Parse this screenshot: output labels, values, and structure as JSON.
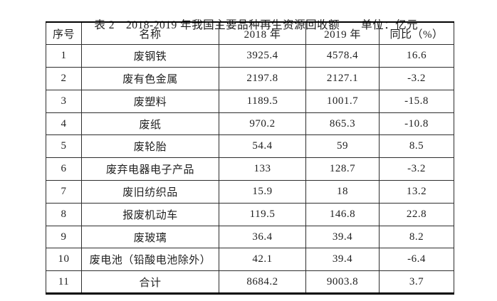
{
  "title": {
    "text": "表 2　2018-2019 年我国主要品种再生资源回收额",
    "unit": "单位：亿元"
  },
  "table": {
    "headers": [
      "序号",
      "名称",
      "2018 年",
      "2019 年",
      "同比（%）"
    ],
    "rows": [
      [
        "1",
        "废钢铁",
        "3925.4",
        "4578.4",
        "16.6"
      ],
      [
        "2",
        "废有色金属",
        "2197.8",
        "2127.1",
        "-3.2"
      ],
      [
        "3",
        "废塑料",
        "1189.5",
        "1001.7",
        "-15.8"
      ],
      [
        "4",
        "废纸",
        "970.2",
        "865.3",
        "-10.8"
      ],
      [
        "5",
        "废轮胎",
        "54.4",
        "59",
        "8.5"
      ],
      [
        "6",
        "废弃电器电子产品",
        "133",
        "128.7",
        "-3.2"
      ],
      [
        "7",
        "废旧纺织品",
        "15.9",
        "18",
        "13.2"
      ],
      [
        "8",
        "报废机动车",
        "119.5",
        "146.8",
        "22.8"
      ],
      [
        "9",
        "废玻璃",
        "36.4",
        "39.4",
        "8.2"
      ],
      [
        "10",
        "废电池（铅酸电池除外）",
        "42.1",
        "39.4",
        "-6.4"
      ],
      [
        "11",
        "合计",
        "8684.2",
        "9003.8",
        "3.7"
      ]
    ]
  }
}
